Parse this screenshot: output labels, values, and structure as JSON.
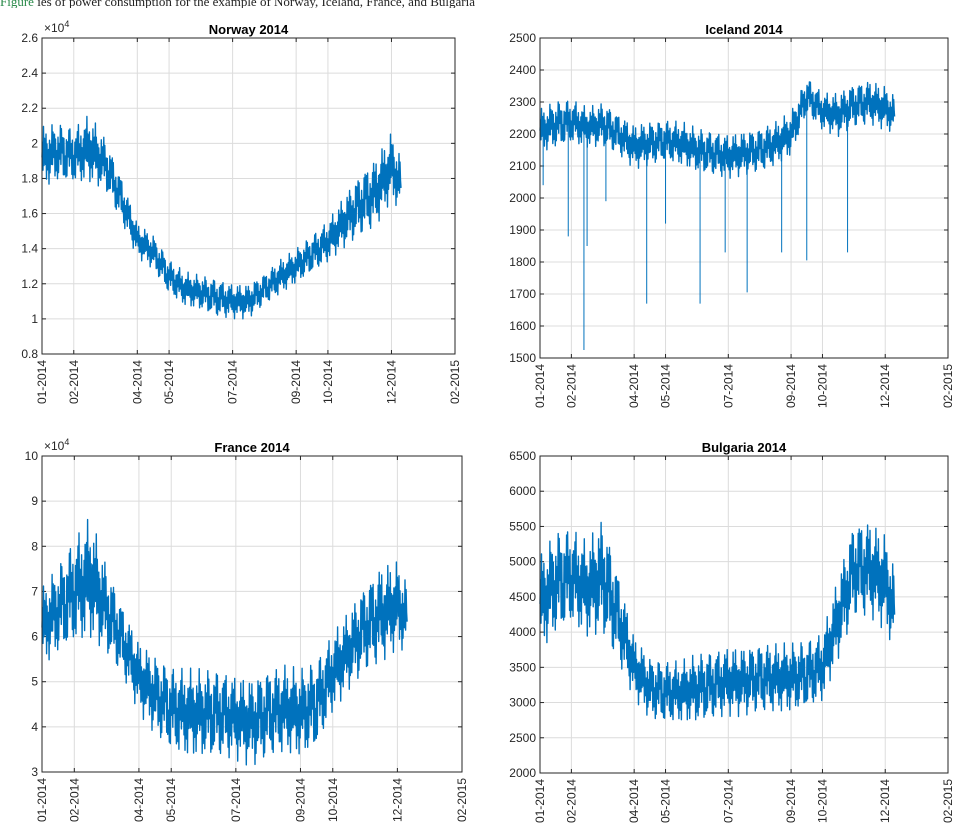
{
  "caption": {
    "figure_ref": "Figure",
    "text": "ies of power consumption for the example of Norway, Iceland, France, and Bulgaria"
  },
  "chart_data": [
    {
      "type": "line",
      "title": "Norway 2014",
      "color": "#0072BD",
      "exponent_label": "×10^4",
      "ylim": [
        0.8,
        2.6
      ],
      "yticks": [
        "0.8",
        "1",
        "1.2",
        "1.4",
        "1.6",
        "1.8",
        "2",
        "2.2",
        "2.4",
        "2.6"
      ],
      "xticks": [
        "01-2014",
        "02-2014",
        "04-2014",
        "05-2014",
        "07-2014",
        "09-2014",
        "10-2014",
        "12-2014",
        "02-2015"
      ],
      "grid": true,
      "x_unit": "month index (0 = Jan 2014)",
      "x": [
        0,
        0.5,
        1,
        1.5,
        2,
        2.5,
        3,
        3.5,
        4,
        4.5,
        5,
        5.5,
        6,
        6.5,
        7,
        7.5,
        8,
        8.5,
        9,
        9.5,
        10,
        10.5,
        11,
        11.3
      ],
      "y_mid": [
        1.92,
        1.95,
        1.93,
        1.97,
        1.88,
        1.68,
        1.45,
        1.38,
        1.24,
        1.17,
        1.15,
        1.12,
        1.1,
        1.1,
        1.17,
        1.24,
        1.3,
        1.37,
        1.44,
        1.55,
        1.65,
        1.72,
        1.87,
        1.76
      ],
      "y_amp": [
        0.18,
        0.17,
        0.16,
        0.2,
        0.15,
        0.13,
        0.1,
        0.1,
        0.1,
        0.1,
        0.1,
        0.11,
        0.1,
        0.1,
        0.09,
        0.1,
        0.1,
        0.11,
        0.12,
        0.15,
        0.18,
        0.2,
        0.2,
        0.16
      ]
    },
    {
      "type": "line",
      "title": "Iceland 2014",
      "color": "#0072BD",
      "exponent_label": "",
      "ylim": [
        1500,
        2500
      ],
      "yticks": [
        "1500",
        "1600",
        "1700",
        "1800",
        "1900",
        "2000",
        "2100",
        "2200",
        "2300",
        "2400",
        "2500"
      ],
      "xticks": [
        "01-2014",
        "02-2014",
        "04-2014",
        "05-2014",
        "07-2014",
        "09-2014",
        "10-2014",
        "12-2014",
        "02-2015"
      ],
      "grid": true,
      "x_unit": "month index (0 = Jan 2014)",
      "x": [
        0,
        0.5,
        1,
        1.5,
        2,
        2.5,
        3,
        3.5,
        4,
        4.5,
        5,
        5.5,
        6,
        6.5,
        7,
        7.5,
        8,
        8.5,
        9,
        9.5,
        10,
        10.5,
        11,
        11.3
      ],
      "y_mid": [
        2210,
        2230,
        2240,
        2220,
        2230,
        2200,
        2160,
        2170,
        2180,
        2170,
        2150,
        2140,
        2130,
        2140,
        2150,
        2170,
        2200,
        2320,
        2270,
        2260,
        2290,
        2300,
        2280,
        2260
      ],
      "y_amp": [
        70,
        75,
        70,
        65,
        70,
        65,
        70,
        70,
        65,
        70,
        70,
        70,
        70,
        70,
        70,
        70,
        70,
        60,
        60,
        70,
        70,
        70,
        70,
        60
      ],
      "dips": [
        [
          0.1,
          2040
        ],
        [
          0.9,
          1880
        ],
        [
          1.4,
          1525
        ],
        [
          1.5,
          1850
        ],
        [
          2.1,
          1990
        ],
        [
          3.4,
          1670
        ],
        [
          4.0,
          1920
        ],
        [
          5.1,
          1670
        ],
        [
          5.9,
          1830
        ],
        [
          6.6,
          1705
        ],
        [
          7.7,
          1830
        ],
        [
          8.5,
          1805
        ],
        [
          9.8,
          1830
        ]
      ]
    },
    {
      "type": "line",
      "title": "France 2014",
      "color": "#0072BD",
      "exponent_label": "×10^4",
      "ylim": [
        3,
        10
      ],
      "yticks": [
        "3",
        "4",
        "5",
        "6",
        "7",
        "8",
        "9",
        "10"
      ],
      "xticks": [
        "01-2014",
        "02-2014",
        "04-2014",
        "05-2014",
        "07-2014",
        "09-2014",
        "10-2014",
        "12-2014",
        "02-2015"
      ],
      "grid": true,
      "x_unit": "month index (0 = Jan 2014)",
      "x": [
        0,
        0.5,
        1,
        1.5,
        2,
        2.5,
        3,
        3.5,
        4,
        4.5,
        5,
        5.5,
        6,
        6.5,
        7,
        7.5,
        8,
        8.5,
        9,
        9.5,
        10,
        10.5,
        11,
        11.3
      ],
      "y_mid": [
        6.2,
        6.6,
        7.0,
        7.3,
        6.6,
        5.9,
        5.1,
        4.7,
        4.4,
        4.3,
        4.3,
        4.3,
        4.2,
        4.1,
        4.3,
        4.4,
        4.3,
        4.5,
        5.2,
        5.7,
        6.2,
        6.5,
        6.7,
        6.4
      ],
      "y_amp": [
        0.9,
        1.0,
        1.2,
        1.4,
        1.0,
        0.8,
        0.8,
        0.9,
        0.95,
        1.0,
        1.0,
        1.0,
        0.95,
        1.0,
        1.0,
        1.0,
        1.0,
        1.0,
        0.9,
        0.9,
        1.0,
        1.1,
        1.0,
        0.8
      ]
    },
    {
      "type": "line",
      "title": "Bulgaria 2014",
      "color": "#0072BD",
      "exponent_label": "",
      "ylim": [
        2000,
        6500
      ],
      "yticks": [
        "2000",
        "2500",
        "3000",
        "3500",
        "4000",
        "4500",
        "5000",
        "5500",
        "6000",
        "6500"
      ],
      "xticks": [
        "01-2014",
        "02-2014",
        "04-2014",
        "05-2014",
        "07-2014",
        "09-2014",
        "10-2014",
        "12-2014",
        "02-2015"
      ],
      "grid": true,
      "x_unit": "month index (0 = Jan 2014)",
      "x": [
        0,
        0.5,
        1,
        1.5,
        2,
        2.5,
        3,
        3.5,
        4,
        4.5,
        5,
        5.5,
        6,
        6.5,
        7,
        7.5,
        8,
        8.5,
        9,
        9.5,
        10,
        10.5,
        11,
        11.3
      ],
      "y_mid": [
        4400,
        4700,
        4800,
        4600,
        4800,
        4200,
        3500,
        3200,
        3150,
        3150,
        3200,
        3250,
        3300,
        3300,
        3350,
        3350,
        3350,
        3400,
        3500,
        4200,
        4900,
        4900,
        4700,
        4300
      ],
      "y_amp": [
        700,
        750,
        700,
        700,
        850,
        650,
        450,
        450,
        450,
        450,
        500,
        500,
        500,
        500,
        500,
        500,
        500,
        500,
        500,
        600,
        700,
        700,
        700,
        600
      ]
    }
  ]
}
